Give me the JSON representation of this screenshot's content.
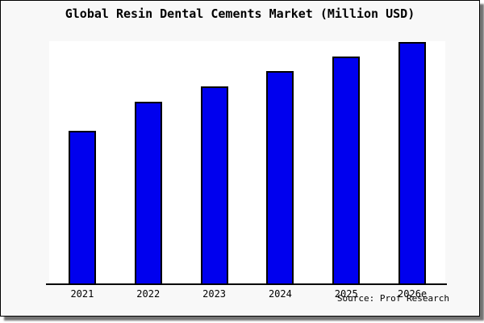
{
  "title": "Global Resin Dental Cements Market (Million USD)",
  "source": "Source: Prof Research",
  "colors": {
    "bar_fill": "#0000ee",
    "bar_border": "#000000",
    "chart_background": "#f8f8f8",
    "plot_background": "#ffffff",
    "axis": "#000000"
  },
  "chart_data": {
    "type": "bar",
    "title": "Global Resin Dental Cements Market (Million USD)",
    "categories": [
      "2021",
      "2022",
      "2023",
      "2024",
      "2025",
      "2026e"
    ],
    "values": [
      190,
      226,
      245,
      264,
      282,
      300
    ],
    "values_note": "relative units estimated from bar heights; no y-axis scale shown in image",
    "xlabel": "",
    "ylabel": "",
    "ylim": [
      0,
      301
    ],
    "grid": false,
    "legend": false,
    "annotations": [
      "Source: Prof Research"
    ]
  }
}
